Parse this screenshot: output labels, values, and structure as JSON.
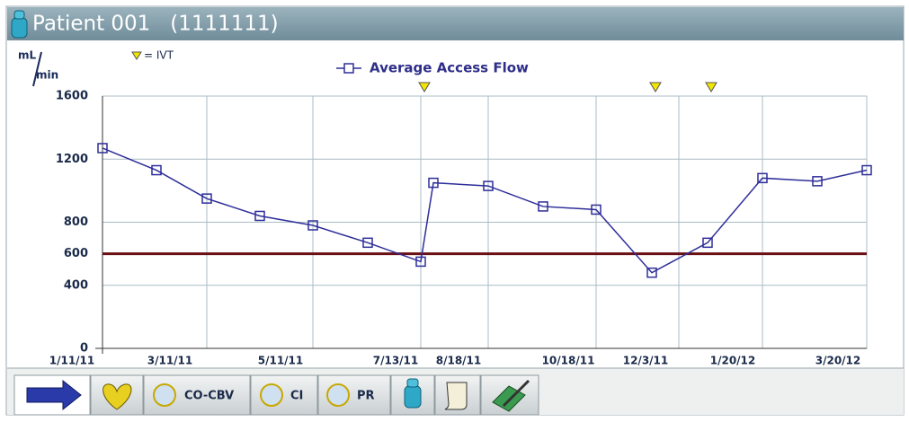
{
  "header": {
    "title": "Patient 001   (1111111)"
  },
  "chart_data": {
    "type": "line",
    "y_unit_top": "mL",
    "y_unit_bottom": "min",
    "ivt_legend": "= IVT",
    "categories": [
      "1/11/11",
      "3/11/11",
      null,
      "5/11/11",
      null,
      "7/13/11",
      null,
      "8/18/11",
      null,
      "10/18/11",
      null,
      "12/3/11",
      "1/20/12",
      null,
      "3/20/12",
      null
    ],
    "series": [
      {
        "name": "Average Access Flow",
        "color": "#2e2e9a",
        "values": [
          1270,
          1130,
          950,
          840,
          780,
          670,
          550,
          1050,
          1030,
          900,
          880,
          480,
          670,
          1080,
          1060,
          1130
        ]
      }
    ],
    "ylim": [
      0,
      1600
    ],
    "yticks": [
      0,
      400,
      600,
      800,
      1200,
      1600
    ],
    "grid": true,
    "threshold": {
      "value": 600,
      "color": "#6a0f14"
    },
    "ivt_points": [
      6,
      11,
      12
    ],
    "ivt_color": "#f2e600"
  },
  "tabs": [
    "CO-CBV",
    "CI",
    "PR"
  ]
}
